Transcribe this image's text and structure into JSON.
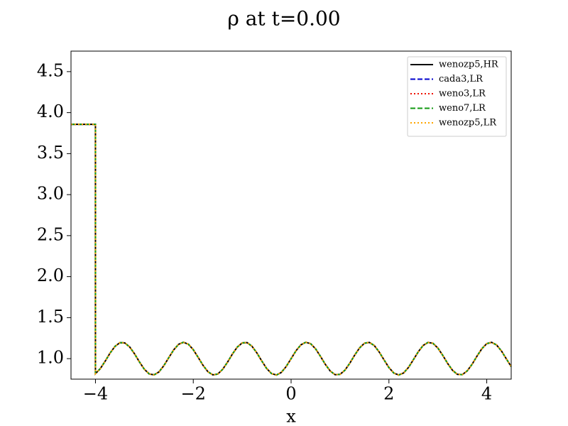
{
  "chart_data": {
    "type": "line",
    "title": "ρ at t=0.00",
    "x_label": "x",
    "x": [
      -4.5,
      -4,
      -4,
      -3.9,
      -3.8,
      -3.7,
      -3.6,
      -3.5,
      -3.4,
      -3.3,
      -3.2,
      -3.1,
      -3,
      -2.9,
      -2.8,
      -2.7,
      -2.6,
      -2.5,
      -2.4,
      -2.3,
      -2.2,
      -2.1,
      -2,
      -1.9,
      -1.8,
      -1.7,
      -1.6,
      -1.5,
      -1.4,
      -1.3,
      -1.2,
      -1.1,
      -1,
      -0.9,
      -0.8,
      -0.7,
      -0.6,
      -0.5,
      -0.4,
      -0.3,
      -0.2,
      -0.1,
      0,
      0.1,
      0.2,
      0.3,
      0.4,
      0.5,
      0.6,
      0.7,
      0.8,
      0.9,
      1,
      1.1,
      1.2,
      1.3,
      1.4,
      1.5,
      1.6,
      1.7,
      1.8,
      1.9,
      2,
      2.1,
      2.2,
      2.3,
      2.4,
      2.5,
      2.6,
      2.7,
      2.8,
      2.9,
      3,
      3.1,
      3.2,
      3.3,
      3.4,
      3.5,
      3.6,
      3.7,
      3.8,
      3.9,
      4,
      4.1,
      4.2,
      4.3,
      4.4,
      4.5
    ],
    "series": [
      {
        "name": "wenozp5,HR",
        "color": "#000000",
        "dash": "solid",
        "values": [
          3.857,
          3.857,
          0.817,
          0.879,
          0.97,
          1.069,
          1.15,
          1.195,
          1.192,
          1.142,
          1.058,
          0.959,
          0.87,
          0.813,
          0.802,
          0.839,
          0.916,
          1.013,
          1.107,
          1.175,
          1.2,
          1.176,
          1.109,
          1.015,
          0.918,
          0.84,
          0.802,
          0.812,
          0.869,
          0.957,
          1.056,
          1.141,
          1.192,
          1.196,
          1.151,
          1.07,
          0.972,
          0.88,
          0.818,
          0.8,
          0.832,
          0.904,
          1.0,
          1.096,
          1.168,
          1.2,
          1.182,
          1.12,
          1.028,
          0.93,
          0.849,
          0.804,
          0.808,
          0.859,
          0.944,
          1.043,
          1.131,
          1.188,
          1.198,
          1.16,
          1.082,
          0.985,
          0.891,
          0.824,
          0.8,
          0.825,
          0.893,
          0.987,
          1.084,
          1.161,
          1.198,
          1.187,
          1.13,
          1.041,
          0.942,
          0.858,
          0.808,
          0.805,
          0.85,
          0.931,
          1.03,
          1.121,
          1.183,
          1.199,
          1.167,
          1.094,
          0.998,
          0.903
        ]
      },
      {
        "name": "cada3,LR",
        "color": "#0000cc",
        "dash": "dashed",
        "values": [
          3.857,
          3.857,
          0.817,
          0.879,
          0.97,
          1.069,
          1.15,
          1.195,
          1.192,
          1.142,
          1.058,
          0.959,
          0.87,
          0.813,
          0.802,
          0.839,
          0.916,
          1.013,
          1.107,
          1.175,
          1.2,
          1.176,
          1.109,
          1.015,
          0.918,
          0.84,
          0.802,
          0.812,
          0.869,
          0.957,
          1.056,
          1.141,
          1.192,
          1.196,
          1.151,
          1.07,
          0.972,
          0.88,
          0.818,
          0.8,
          0.832,
          0.904,
          1.0,
          1.096,
          1.168,
          1.2,
          1.182,
          1.12,
          1.028,
          0.93,
          0.849,
          0.804,
          0.808,
          0.859,
          0.944,
          1.043,
          1.131,
          1.188,
          1.198,
          1.16,
          1.082,
          0.985,
          0.891,
          0.824,
          0.8,
          0.825,
          0.893,
          0.987,
          1.084,
          1.161,
          1.198,
          1.187,
          1.13,
          1.041,
          0.942,
          0.858,
          0.808,
          0.805,
          0.85,
          0.931,
          1.03,
          1.121,
          1.183,
          1.199,
          1.167,
          1.094,
          0.998,
          0.903
        ]
      },
      {
        "name": "weno3,LR",
        "color": "#ee1100",
        "dash": "dotted",
        "values": [
          3.857,
          3.857,
          0.817,
          0.879,
          0.97,
          1.069,
          1.15,
          1.195,
          1.192,
          1.142,
          1.058,
          0.959,
          0.87,
          0.813,
          0.802,
          0.839,
          0.916,
          1.013,
          1.107,
          1.175,
          1.2,
          1.176,
          1.109,
          1.015,
          0.918,
          0.84,
          0.802,
          0.812,
          0.869,
          0.957,
          1.056,
          1.141,
          1.192,
          1.196,
          1.151,
          1.07,
          0.972,
          0.88,
          0.818,
          0.8,
          0.832,
          0.904,
          1.0,
          1.096,
          1.168,
          1.2,
          1.182,
          1.12,
          1.028,
          0.93,
          0.849,
          0.804,
          0.808,
          0.859,
          0.944,
          1.043,
          1.131,
          1.188,
          1.198,
          1.16,
          1.082,
          0.985,
          0.891,
          0.824,
          0.8,
          0.825,
          0.893,
          0.987,
          1.084,
          1.161,
          1.198,
          1.187,
          1.13,
          1.041,
          0.942,
          0.858,
          0.808,
          0.805,
          0.85,
          0.931,
          1.03,
          1.121,
          1.183,
          1.199,
          1.167,
          1.094,
          0.998,
          0.903
        ]
      },
      {
        "name": "weno7,LR",
        "color": "#119911",
        "dash": "dashed",
        "values": [
          3.857,
          3.857,
          0.817,
          0.879,
          0.97,
          1.069,
          1.15,
          1.195,
          1.192,
          1.142,
          1.058,
          0.959,
          0.87,
          0.813,
          0.802,
          0.839,
          0.916,
          1.013,
          1.107,
          1.175,
          1.2,
          1.176,
          1.109,
          1.015,
          0.918,
          0.84,
          0.802,
          0.812,
          0.869,
          0.957,
          1.056,
          1.141,
          1.192,
          1.196,
          1.151,
          1.07,
          0.972,
          0.88,
          0.818,
          0.8,
          0.832,
          0.904,
          1.0,
          1.096,
          1.168,
          1.2,
          1.182,
          1.12,
          1.028,
          0.93,
          0.849,
          0.804,
          0.808,
          0.859,
          0.944,
          1.043,
          1.131,
          1.188,
          1.198,
          1.16,
          1.082,
          0.985,
          0.891,
          0.824,
          0.8,
          0.825,
          0.893,
          0.987,
          1.084,
          1.161,
          1.198,
          1.187,
          1.13,
          1.041,
          0.942,
          0.858,
          0.808,
          0.805,
          0.85,
          0.931,
          1.03,
          1.121,
          1.183,
          1.199,
          1.167,
          1.094,
          0.998,
          0.903
        ]
      },
      {
        "name": "wenozp5,LR",
        "color": "#ffa500",
        "dash": "dotted",
        "values": [
          3.857,
          3.857,
          0.817,
          0.879,
          0.97,
          1.069,
          1.15,
          1.195,
          1.192,
          1.142,
          1.058,
          0.959,
          0.87,
          0.813,
          0.802,
          0.839,
          0.916,
          1.013,
          1.107,
          1.175,
          1.2,
          1.176,
          1.109,
          1.015,
          0.918,
          0.84,
          0.802,
          0.812,
          0.869,
          0.957,
          1.056,
          1.141,
          1.192,
          1.196,
          1.151,
          1.07,
          0.972,
          0.88,
          0.818,
          0.8,
          0.832,
          0.904,
          1.0,
          1.096,
          1.168,
          1.2,
          1.182,
          1.12,
          1.028,
          0.93,
          0.849,
          0.804,
          0.808,
          0.859,
          0.944,
          1.043,
          1.131,
          1.188,
          1.198,
          1.16,
          1.082,
          0.985,
          0.891,
          0.824,
          0.8,
          0.825,
          0.893,
          0.987,
          1.084,
          1.161,
          1.198,
          1.187,
          1.13,
          1.041,
          0.942,
          0.858,
          0.808,
          0.805,
          0.85,
          0.931,
          1.03,
          1.121,
          1.183,
          1.199,
          1.167,
          1.094,
          0.998,
          0.903
        ]
      }
    ],
    "xlim": [
      -4.5,
      4.5
    ],
    "xticks": [
      {
        "value": -4,
        "label": "−4"
      },
      {
        "value": -2,
        "label": "−2"
      },
      0,
      2,
      4
    ],
    "ylim": [
      0.75,
      4.75
    ],
    "yticks": [
      {
        "value": 1,
        "label": "1.0"
      },
      1.5,
      {
        "value": 2,
        "label": "2.0"
      },
      2.5,
      {
        "value": 3,
        "label": "3.0"
      },
      3.5,
      {
        "value": 4,
        "label": "4.0"
      },
      4.5
    ],
    "grid": false,
    "legend": "upper right"
  }
}
